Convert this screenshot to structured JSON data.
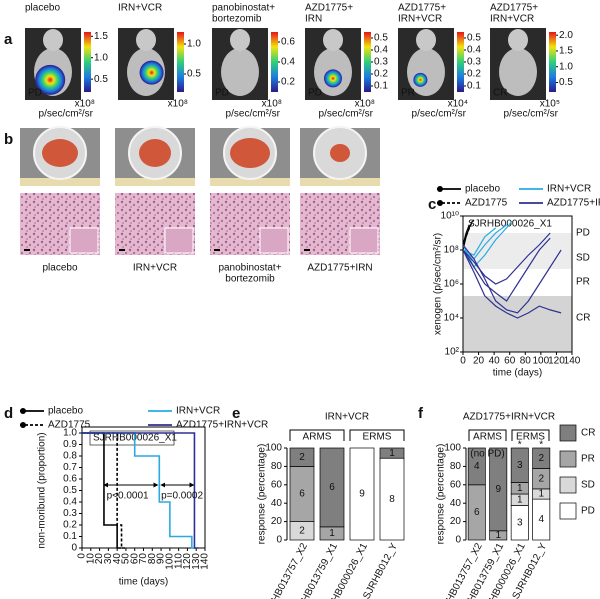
{
  "panel_a": {
    "letter": "a",
    "mice": [
      {
        "label": [
          "placebo"
        ],
        "response": "PD",
        "scale": "x10⁸",
        "unit": "p/sec/cm²/sr",
        "clim": [
          0.2,
          1.6
        ],
        "ticks": [
          1.5,
          {
            "value": 1,
            "label": "1.0"
          },
          0.5
        ]
      },
      {
        "label": [
          "IRN+VCR"
        ],
        "scale": "x10⁸",
        "clim": [
          0.2,
          1.2
        ],
        "ticks": [
          {
            "value": 1,
            "label": "1.0"
          },
          0.5
        ]
      },
      {
        "label": [
          "panobinostat+",
          "bortezomib"
        ],
        "response": "PD",
        "scale": "x10⁸",
        "unit": "p/sec/cm²/sr",
        "clim": [
          0.1,
          0.7
        ],
        "ticks": [
          0.6,
          0.4,
          0.2
        ]
      },
      {
        "label": [
          "AZD1775+",
          "IRN"
        ],
        "response": "PD",
        "scale": "x10⁸",
        "unit": "p/sec/cm²/sr",
        "clim": [
          0.05,
          0.55
        ],
        "ticks": [
          0.5,
          0.4,
          0.3,
          0.2,
          0.1
        ]
      },
      {
        "label": [
          "AZD1775+",
          "IRN+VCR"
        ],
        "response": "PR",
        "scale": "x10⁴",
        "unit": "p/sec/cm²/sr",
        "clim": [
          0.05,
          0.55
        ],
        "ticks": [
          0.5,
          0.4,
          0.3,
          0.2,
          0.1
        ]
      },
      {
        "label": [
          "AZD1775+",
          "IRN+VCR"
        ],
        "response": "CR",
        "scale": "x10⁵",
        "unit": "p/sec/cm²/sr",
        "clim": [
          0.2,
          2.1
        ],
        "ticks": [
          {
            "value": 2,
            "label": "2.0"
          },
          1.5,
          {
            "value": 1,
            "label": "1.0"
          },
          0.5
        ]
      }
    ]
  },
  "panel_b": {
    "letter": "b",
    "labels": [
      [
        "placebo"
      ],
      [
        "IRN+VCR"
      ],
      [
        "panobinostat+",
        "bortezomib"
      ],
      [
        "AZD1775+IRN"
      ]
    ]
  },
  "panel_c": {
    "type": "line",
    "letter": "c",
    "title": "SJRHB000026_X1",
    "ylabel": "xenogen (p/sec/cm²/sr)",
    "xlabel": "time (days)",
    "log_y": true,
    "xlim": [
      0,
      140
    ],
    "xticks": [
      0,
      20,
      40,
      60,
      80,
      100,
      120,
      140
    ],
    "ylim": [
      100,
      10000000000
    ],
    "yticks": [
      {
        "value": 10000000000,
        "label": "10¹⁰"
      },
      {
        "value": 100000000,
        "label": "10⁸"
      },
      {
        "value": 1000000,
        "label": "10⁶"
      },
      {
        "value": 10000,
        "label": "10⁴"
      },
      {
        "value": 100,
        "label": "10²"
      }
    ],
    "zones": [
      "PD",
      "SD",
      "PR",
      "CR"
    ],
    "groups": [
      {
        "name": "placebo",
        "color": "#000000",
        "dashed": false,
        "lines": [
          {
            "x": [
              0,
              4,
              8
            ],
            "values": [
              200000000,
              1000000000,
              3000000000
            ]
          },
          {
            "x": [
              0,
              4,
              8,
              12
            ],
            "values": [
              100000000,
              600000000,
              2000000000,
              5000000000
            ]
          }
        ]
      },
      {
        "name": "AZD1775",
        "color": "#000000",
        "dashed": true,
        "lines": [
          {
            "x": [
              0,
              5,
              10,
              14
            ],
            "values": [
              200000000,
              800000000,
              3000000000,
              6000000000
            ]
          }
        ]
      },
      {
        "name": "IRN+VCR",
        "color": "#29abe2",
        "dashed": false,
        "lines": [
          {
            "x": [
              0,
              14,
              28,
              42,
              56
            ],
            "values": [
              100000000,
              30000000,
              200000000,
              1000000000,
              3000000000
            ]
          },
          {
            "x": [
              0,
              14,
              28,
              42,
              56,
              63
            ],
            "values": [
              200000000,
              10000000,
              50000000,
              400000000,
              2000000000,
              5000000000
            ]
          },
          {
            "x": [
              0,
              14,
              28,
              42
            ],
            "values": [
              100000000,
              50000000,
              600000000,
              2000000000
            ]
          }
        ]
      },
      {
        "name": "AZD1775+IRN+VCR",
        "color": "#2e3192",
        "dashed": false,
        "lines": [
          {
            "x": [
              0,
              14,
              28,
              42,
              56,
              70,
              84,
              98,
              112
            ],
            "values": [
              100000000,
              10000000,
              1000000,
              300000,
              100000,
              1000000,
              10000000,
              100000000,
              500000000
            ]
          },
          {
            "x": [
              0,
              14,
              28,
              42,
              56,
              70,
              84,
              98,
              112,
              126
            ],
            "values": [
              200000000,
              30000000,
              2000000,
              100000,
              30000,
              20000,
              100000,
              1000000,
              10000000,
              100000000
            ]
          },
          {
            "x": [
              0,
              14,
              28,
              42,
              56,
              70,
              84,
              98,
              112,
              126
            ],
            "values": [
              100000000,
              5000000,
              200000,
              50000,
              20000,
              10000,
              20000,
              50000,
              30000,
              20000
            ]
          },
          {
            "x": [
              0,
              14,
              28,
              42,
              56,
              70,
              84,
              98,
              112
            ],
            "values": [
              100000000,
              20000000,
              3000000,
              1000000,
              2000000,
              10000000,
              50000000,
              200000000,
              1000000000
            ]
          }
        ]
      }
    ]
  },
  "panel_d": {
    "type": "step",
    "letter": "d",
    "title": "SJRHB000026_X1",
    "ylabel": "non-moribund (proportion)",
    "xlabel": "time (days)",
    "xlim": [
      0,
      140
    ],
    "xticks": [
      0,
      10,
      20,
      30,
      40,
      50,
      60,
      70,
      80,
      90,
      100,
      110,
      120,
      130,
      140
    ],
    "ylim": [
      0,
      1
    ],
    "yticks": [
      0,
      0.1,
      0.2,
      0.3,
      0.4,
      0.5,
      0.6,
      0.7,
      0.8,
      0.9,
      {
        "value": 1,
        "label": "1.0"
      }
    ],
    "annotations": [
      "p<0.0001",
      "p=0.0002"
    ],
    "series": [
      {
        "name": "placebo",
        "color": "#000000",
        "dashed": false,
        "x": [
          0,
          25,
          40
        ],
        "values": [
          1,
          0.2,
          0
        ]
      },
      {
        "name": "AZD1775",
        "color": "#000000",
        "dashed": true,
        "x": [
          0,
          40,
          45
        ],
        "values": [
          1,
          0.2,
          0
        ]
      },
      {
        "name": "IRN+VCR",
        "color": "#29abe2",
        "dashed": false,
        "x": [
          0,
          60,
          88,
          100,
          125
        ],
        "values": [
          1,
          0.8,
          0.4,
          0.1,
          0
        ]
      },
      {
        "name": "AZD1775+IRN+VCR",
        "color": "#2e3192",
        "dashed": false,
        "x": [
          0,
          128
        ],
        "values": [
          1,
          0
        ]
      }
    ]
  },
  "panel_e": {
    "type": "stacked_bar",
    "letter": "e",
    "title": "IRN+VCR",
    "ylabel": "response (percentage)",
    "ylim": [
      0,
      100
    ],
    "yticks": [
      0,
      20,
      40,
      60,
      80,
      100
    ],
    "groups": [
      "ARMS",
      "ERMS"
    ],
    "categories": [
      "SJRHB013757_X2",
      "SJRHB013759_X1",
      "SJRHB000026_X1",
      "SJRHB012_Y"
    ],
    "series": [
      {
        "color": "#ffffff",
        "values": [
          0,
          0,
          9,
          8
        ]
      },
      {
        "color": "#d9d9d9",
        "values": [
          2,
          0,
          0,
          0
        ]
      },
      {
        "color": "#a6a6a6",
        "values": [
          6,
          1,
          0,
          0
        ]
      },
      {
        "color": "#7f7f7f",
        "values": [
          2,
          6,
          0,
          1
        ]
      }
    ]
  },
  "panel_f": {
    "type": "stacked_bar",
    "letter": "f",
    "title": "AZD1775+IRN+VCR",
    "ylabel": "response (percentage)",
    "ylim": [
      0,
      100
    ],
    "yticks": [
      0,
      20,
      40,
      60,
      80,
      100
    ],
    "groups": [
      "ARMS",
      "ERMS"
    ],
    "annotations": [
      "(no PD)",
      "*",
      "*"
    ],
    "categories": [
      "SJRHB013757_X2",
      "SJRHB013759_X1",
      "SJRHB000026_X1",
      "SJRHB012_Y"
    ],
    "series": [
      {
        "name": "PD",
        "color": "#ffffff",
        "values": [
          0,
          0,
          3,
          4
        ]
      },
      {
        "name": "SD",
        "color": "#d9d9d9",
        "values": [
          0,
          0,
          1,
          1
        ]
      },
      {
        "name": "PR",
        "color": "#a6a6a6",
        "values": [
          6,
          1,
          1,
          2
        ]
      },
      {
        "name": "CR",
        "color": "#7f7f7f",
        "values": [
          4,
          9,
          3,
          2
        ]
      }
    ]
  }
}
